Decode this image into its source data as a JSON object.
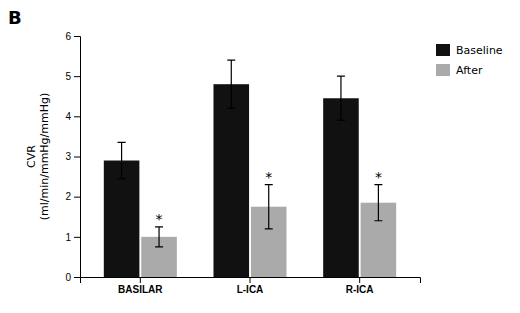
{
  "chart_data": {
    "type": "bar",
    "title": "B",
    "categories": [
      "BASILAR",
      "L-ICA",
      "R-ICA"
    ],
    "series": [
      {
        "name": "Baseline",
        "color": "#111111",
        "values": [
          2.9,
          4.8,
          4.45
        ],
        "errors": [
          0.45,
          0.6,
          0.55
        ]
      },
      {
        "name": "After",
        "color": "#aaaaaa",
        "values": [
          1.0,
          1.75,
          1.85
        ],
        "errors": [
          0.25,
          0.55,
          0.45
        ]
      }
    ],
    "ylabel": "CVR\n(ml/min/mmHg/mmHg)",
    "ylim": [
      0,
      6
    ],
    "yticks": [
      0,
      1,
      2,
      3,
      4,
      5,
      6
    ],
    "annotations": [
      {
        "text": "*",
        "category": "BASILAR",
        "series": "After"
      },
      {
        "text": "*",
        "category": "L-ICA",
        "series": "After"
      },
      {
        "text": "*",
        "category": "R-ICA",
        "series": "After"
      }
    ],
    "grid": false,
    "legend": "right"
  }
}
